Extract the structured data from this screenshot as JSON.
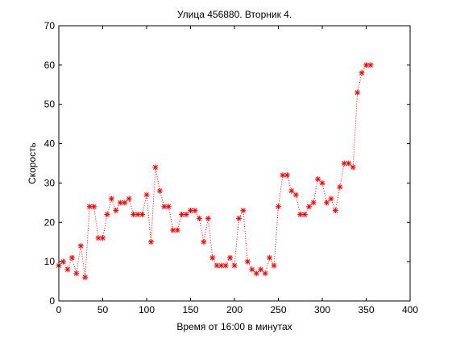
{
  "chart_data": {
    "type": "line",
    "title": "Улица 456880. Вторник 4.",
    "xlabel": "Время от 16:00 в минутах",
    "ylabel": "Скорость",
    "xlim": [
      0,
      400
    ],
    "ylim": [
      0,
      70
    ],
    "xticks": [
      0,
      50,
      100,
      150,
      200,
      250,
      300,
      350,
      400
    ],
    "yticks": [
      0,
      10,
      20,
      30,
      40,
      50,
      60,
      70
    ],
    "grid": false,
    "line_style": "dotted",
    "marker": "*",
    "color": "#ff0000",
    "series": [
      {
        "x": [
          0,
          5,
          10,
          15,
          20,
          25,
          30,
          35,
          40,
          45,
          50,
          55,
          60,
          65,
          70,
          75,
          80,
          85,
          90,
          95,
          100,
          105,
          110,
          115,
          120,
          125,
          130,
          135,
          140,
          145,
          150,
          155,
          160,
          165,
          170,
          175,
          180,
          185,
          190,
          195,
          200,
          205,
          210,
          215,
          220,
          225,
          230,
          235,
          240,
          245,
          250,
          255,
          260,
          265,
          270,
          275,
          280,
          285,
          290,
          295,
          300,
          305,
          310,
          315,
          320,
          325,
          330,
          335,
          340,
          345,
          350,
          355
        ],
        "y": [
          9,
          10,
          8,
          11,
          7,
          14,
          6,
          24,
          24,
          16,
          16,
          22,
          26,
          23,
          25,
          25,
          26,
          22,
          22,
          22,
          27,
          15,
          34,
          28,
          24,
          24,
          18,
          18,
          22,
          22,
          23,
          23,
          21,
          15,
          21,
          11,
          9,
          9,
          9,
          11,
          9,
          21,
          23,
          10,
          8,
          7,
          8,
          7,
          11,
          9,
          24,
          32,
          32,
          28,
          27,
          22,
          22,
          24,
          25,
          31,
          30,
          25,
          26,
          23,
          29,
          35,
          35,
          34,
          53,
          58,
          60,
          60
        ]
      }
    ]
  }
}
